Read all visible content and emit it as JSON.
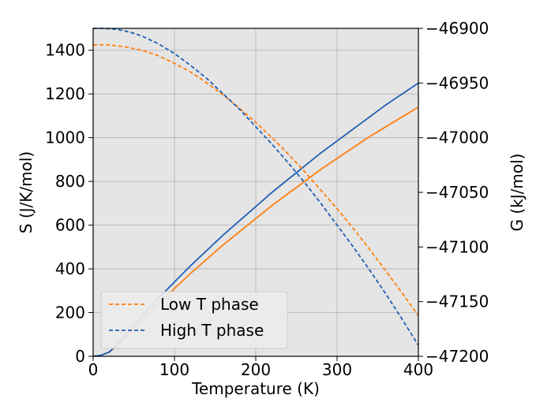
{
  "chart_data": {
    "type": "line",
    "xlabel": "Temperature (K)",
    "ylabel_left": "S (J/K/mol)",
    "ylabel_right": "G (kJ/mol)",
    "xlim": [
      0,
      400
    ],
    "ylim_left": [
      0,
      1500
    ],
    "ylim_right": [
      -47200,
      -46900
    ],
    "x_ticks": [
      0,
      100,
      200,
      300,
      400
    ],
    "y_left_ticks": [
      0,
      200,
      400,
      600,
      800,
      1000,
      1200,
      1400
    ],
    "y_right_ticks": [
      -47200,
      -47150,
      -47100,
      -47050,
      -47000,
      -46950,
      -46900
    ],
    "grid": true,
    "legend_position": "lower-left",
    "legend": [
      {
        "label": "Low T phase",
        "color": "#ff7f0e",
        "style": "dashed"
      },
      {
        "label": "High T phase",
        "color": "#1f5fb4",
        "style": "dashed"
      }
    ],
    "x": [
      0,
      10,
      20,
      30,
      40,
      50,
      60,
      80,
      100,
      120,
      140,
      160,
      180,
      200,
      220,
      240,
      260,
      280,
      300,
      320,
      340,
      360,
      380,
      400
    ],
    "series": [
      {
        "name": "Low T phase",
        "axis": "left",
        "quantity": "S",
        "color": "#ff7f0e",
        "style": "solid",
        "values": [
          0,
          5,
          20,
          50,
          85,
          125,
          165,
          240,
          310,
          380,
          445,
          510,
          570,
          630,
          690,
          745,
          800,
          855,
          905,
          955,
          1005,
          1050,
          1095,
          1140
        ]
      },
      {
        "name": "High T phase",
        "axis": "left",
        "quantity": "S",
        "color": "#1f5fb4",
        "style": "solid",
        "values": [
          0,
          5,
          20,
          55,
          95,
          140,
          185,
          265,
          340,
          415,
          485,
          555,
          620,
          685,
          750,
          810,
          870,
          930,
          985,
          1040,
          1095,
          1150,
          1200,
          1250
        ]
      },
      {
        "name": "Low T phase",
        "axis": "right",
        "quantity": "G",
        "color": "#ff7f0e",
        "style": "dashed",
        "values": [
          -46915,
          -46915,
          -46915.3,
          -46916,
          -46917,
          -46918.5,
          -46920,
          -46925,
          -46932,
          -46940,
          -46950,
          -46961,
          -46973,
          -46986,
          -47000,
          -47015,
          -47031,
          -47048,
          -47065,
          -47083,
          -47102,
          -47122,
          -47142,
          -47163
        ]
      },
      {
        "name": "High T phase",
        "axis": "right",
        "quantity": "G",
        "color": "#1f5fb4",
        "style": "dashed",
        "values": [
          -46900,
          -46900,
          -46900.3,
          -46901,
          -46902.5,
          -46904.5,
          -46907,
          -46914,
          -46923,
          -46934,
          -46946,
          -46960,
          -46974,
          -46990,
          -47006,
          -47023,
          -47041,
          -47060,
          -47080,
          -47100,
          -47121,
          -47143,
          -47166,
          -47190
        ]
      }
    ]
  }
}
